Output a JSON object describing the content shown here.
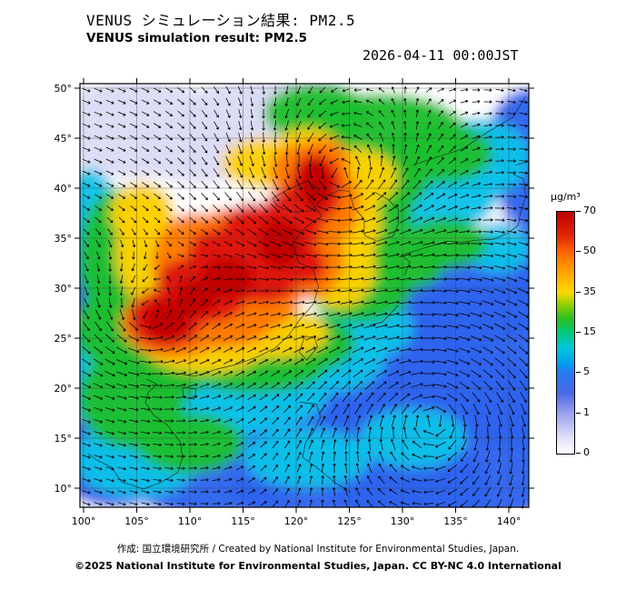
{
  "header": {
    "title_jp": "VENUS シミュレーション結果: PM2.5",
    "title_en": "VENUS simulation result: PM2.5",
    "datetime": "2026-04-11 00:00JST"
  },
  "footer": {
    "credit": "作成:  国立環境研究所 / Created by National Institute for Environmental Studies, Japan.",
    "copyright": "©2025 National Institute for Environmental Studies, Japan. CC BY-NC 4.0 International"
  },
  "chart_data": {
    "type": "heatmap",
    "title": "VENUS simulation result: PM2.5",
    "title_jp": "VENUS シミュレーション結果: PM2.5",
    "datetime": "2026-04-11 00:00JST",
    "variable": "PM2.5",
    "unit": "µg/m³",
    "lon_range": [
      100,
      142
    ],
    "lat_range": [
      8,
      50.5
    ],
    "grid_interval_deg": 5,
    "lon_ticks": [
      {
        "value": 100,
        "label": "100°"
      },
      {
        "value": 105,
        "label": "105°"
      },
      {
        "value": 110,
        "label": "110°"
      },
      {
        "value": 115,
        "label": "115°"
      },
      {
        "value": 120,
        "label": "120°"
      },
      {
        "value": 125,
        "label": "125°"
      },
      {
        "value": 130,
        "label": "130°"
      },
      {
        "value": 135,
        "label": "135°"
      },
      {
        "value": 140,
        "label": "140°"
      }
    ],
    "lat_ticks": [
      {
        "value": 50,
        "label": "50°"
      },
      {
        "value": 45,
        "label": "45°"
      },
      {
        "value": 40,
        "label": "40°"
      },
      {
        "value": 35,
        "label": "35°"
      },
      {
        "value": 30,
        "label": "30°"
      },
      {
        "value": 25,
        "label": "25°"
      },
      {
        "value": 20,
        "label": "20°"
      },
      {
        "value": 15,
        "label": "15°"
      },
      {
        "value": 10,
        "label": "10°"
      }
    ],
    "colorbar": {
      "unit_label": "µg/m³",
      "levels": [
        "70",
        "50",
        "35",
        "15",
        "5",
        "1",
        "0"
      ],
      "level_values": [
        70,
        50,
        35,
        15,
        5,
        1,
        0
      ],
      "gradient_stops": [
        {
          "pos": 0.0,
          "color": "#bf0000"
        },
        {
          "pos": 0.1,
          "color": "#e02800"
        },
        {
          "pos": 0.167,
          "color": "#ff6600"
        },
        {
          "pos": 0.26,
          "color": "#ffaa00"
        },
        {
          "pos": 0.333,
          "color": "#ffd800"
        },
        {
          "pos": 0.38,
          "color": "#98d000"
        },
        {
          "pos": 0.44,
          "color": "#2ec020"
        },
        {
          "pos": 0.5,
          "color": "#00c878"
        },
        {
          "pos": 0.56,
          "color": "#00c8d8"
        },
        {
          "pos": 0.625,
          "color": "#00a0f0"
        },
        {
          "pos": 0.667,
          "color": "#2878ee"
        },
        {
          "pos": 0.75,
          "color": "#4a6ae8"
        },
        {
          "pos": 0.833,
          "color": "#9aa0ee"
        },
        {
          "pos": 0.92,
          "color": "#d8d8f6"
        },
        {
          "pos": 1.0,
          "color": "#ffffff"
        }
      ]
    },
    "blob_format": [
      "lon",
      "lat",
      "rx_deg",
      "ry_deg",
      "color"
    ],
    "field_blobs": [
      [
        105,
        46,
        8,
        5,
        "#dcdcf6"
      ],
      [
        116,
        47,
        7,
        4,
        "#dcdcf6"
      ],
      [
        111,
        43.5,
        6,
        3,
        "#dcdcf6"
      ],
      [
        120,
        49,
        5,
        3,
        "#dcdcf6"
      ],
      [
        141,
        30.5,
        4,
        5,
        "#dcdcf6"
      ],
      [
        142,
        36,
        3,
        3,
        "#dcdcf6"
      ],
      [
        139.5,
        11,
        6,
        4,
        "#dcdcf6"
      ],
      [
        134,
        15,
        14,
        9,
        "#2e63ed"
      ],
      [
        126,
        10,
        12,
        6,
        "#2e63ed"
      ],
      [
        140,
        23,
        7,
        9,
        "#2e63ed"
      ],
      [
        137,
        29,
        6,
        5,
        "#2e63ed"
      ],
      [
        133,
        26,
        6,
        5,
        "#2e63ed"
      ],
      [
        130,
        20,
        9,
        7,
        "#2e63ed"
      ],
      [
        120,
        16,
        8,
        5,
        "#2e63ed"
      ],
      [
        112,
        12,
        9,
        5,
        "#2e63ed"
      ],
      [
        103,
        13,
        6,
        5,
        "#2e63ed"
      ],
      [
        142,
        45,
        4,
        5,
        "#2e63ed"
      ],
      [
        142,
        40,
        3,
        4,
        "#2e63ed"
      ],
      [
        100.5,
        30.5,
        2.5,
        4,
        "#2e63ed"
      ],
      [
        143,
        33,
        3,
        4,
        "#2e63ed"
      ],
      [
        133,
        39.5,
        6,
        4,
        "#10c2e8"
      ],
      [
        137,
        43,
        5,
        4,
        "#10c2e8"
      ],
      [
        102,
        22,
        5,
        6,
        "#10c2e8"
      ],
      [
        105,
        13,
        6,
        4,
        "#10c2e8"
      ],
      [
        115,
        19.5,
        8,
        4,
        "#10c2e8"
      ],
      [
        110,
        16.5,
        6,
        4,
        "#10c2e8"
      ],
      [
        123.5,
        23.5,
        5,
        4,
        "#10c2e8"
      ],
      [
        100.5,
        36,
        3,
        6,
        "#10c2e8"
      ],
      [
        127,
        26,
        4,
        3,
        "#10c2e8"
      ],
      [
        139,
        34,
        3,
        2.5,
        "#10c2e8"
      ],
      [
        121,
        13,
        6,
        3,
        "#10c2e8"
      ],
      [
        131,
        15,
        5,
        3,
        "#10c2e8"
      ],
      [
        128,
        45.5,
        8,
        4,
        "#1ebd2e"
      ],
      [
        122,
        47.5,
        5,
        3,
        "#1ebd2e"
      ],
      [
        133.5,
        43.5,
        5,
        3,
        "#1ebd2e"
      ],
      [
        129.5,
        41,
        3,
        3,
        "#1ebd2e"
      ],
      [
        127,
        37.5,
        4,
        4,
        "#1ebd2e"
      ],
      [
        103.5,
        33,
        4,
        7,
        "#1ebd2e"
      ],
      [
        103,
        26,
        4,
        4,
        "#1ebd2e"
      ],
      [
        116,
        22.5,
        7,
        3,
        "#1ebd2e"
      ],
      [
        120.5,
        24.5,
        5,
        3,
        "#1ebd2e"
      ],
      [
        104.5,
        19,
        5,
        5,
        "#1ebd2e"
      ],
      [
        107.5,
        21.5,
        4,
        3,
        "#1ebd2e"
      ],
      [
        134,
        34.5,
        4,
        2.5,
        "#1ebd2e"
      ],
      [
        131,
        32.5,
        3,
        2.5,
        "#1ebd2e"
      ],
      [
        126,
        30.5,
        5,
        4,
        "#1ebd2e"
      ],
      [
        125.5,
        33.5,
        4,
        3,
        "#1ebd2e"
      ],
      [
        110,
        14.5,
        5,
        3,
        "#1ebd2e"
      ],
      [
        111.5,
        24.5,
        6,
        3,
        "#ffd000"
      ],
      [
        106,
        33.5,
        3,
        5,
        "#ffd000"
      ],
      [
        118,
        25.5,
        5,
        2.5,
        "#ffd000"
      ],
      [
        124,
        32,
        3.5,
        4,
        "#ffd000"
      ],
      [
        125,
        36.5,
        3,
        4,
        "#ffd000"
      ],
      [
        125.5,
        41,
        4,
        3,
        "#ffd000"
      ],
      [
        117,
        42.5,
        4,
        2.5,
        "#ffd000"
      ],
      [
        105.5,
        37.5,
        3,
        3,
        "#ffd000"
      ],
      [
        121,
        44,
        3,
        2,
        "#ffd000"
      ],
      [
        108.5,
        26.5,
        5,
        3.5,
        "#ff7a00"
      ],
      [
        113,
        27,
        5,
        3,
        "#ff7a00"
      ],
      [
        110.5,
        32.5,
        4,
        5,
        "#ff7a00"
      ],
      [
        115.5,
        29.5,
        5,
        4,
        "#ff7a00"
      ],
      [
        118.5,
        31.5,
        4,
        3,
        "#ff7a00"
      ],
      [
        114,
        35,
        4,
        3,
        "#ff7a00"
      ],
      [
        121.5,
        33,
        3,
        4,
        "#ff7a00"
      ],
      [
        123,
        38.5,
        3,
        4,
        "#ff7a00"
      ],
      [
        120.5,
        41.5,
        3,
        3,
        "#ff7a00"
      ],
      [
        122.5,
        42.5,
        2.5,
        2.5,
        "#ff7a00"
      ],
      [
        107.8,
        27,
        3.5,
        3,
        "#df1410"
      ],
      [
        111.5,
        29.5,
        4,
        3,
        "#df1410"
      ],
      [
        114.5,
        31.5,
        4,
        3,
        "#df1410"
      ],
      [
        117.5,
        33.5,
        3.5,
        3,
        "#df1410"
      ],
      [
        119.5,
        36.5,
        3,
        3.5,
        "#df1410"
      ],
      [
        121.8,
        40,
        2.5,
        3.5,
        "#df1410"
      ],
      [
        112.8,
        33.5,
        3,
        2.5,
        "#df1410"
      ],
      [
        109.8,
        30.5,
        3,
        2.5,
        "#df1410"
      ],
      [
        117,
        30.5,
        3,
        2,
        "#df1410"
      ],
      [
        120.8,
        32.3,
        2,
        2,
        "#df1410"
      ],
      [
        116,
        36,
        3,
        2.5,
        "#df1410"
      ],
      [
        107.8,
        26.8,
        2,
        2,
        "#c00000"
      ],
      [
        113.5,
        31,
        2.5,
        2,
        "#c00000"
      ],
      [
        118.5,
        34.5,
        2,
        2.5,
        "#c00000"
      ],
      [
        121.8,
        40.5,
        1.5,
        2.5,
        "#c00000"
      ],
      [
        110.5,
        29,
        2,
        1.8,
        "#c00000"
      ]
    ],
    "coastlines": [
      [
        [
          108.5,
          21.5
        ],
        [
          110.5,
          21.2
        ],
        [
          112.5,
          21.9
        ],
        [
          114.5,
          22.4
        ],
        [
          116.5,
          23.2
        ],
        [
          118,
          24
        ],
        [
          119.3,
          25.3
        ],
        [
          120.3,
          26.8
        ],
        [
          121.6,
          28.4
        ],
        [
          122.1,
          30.1
        ],
        [
          121.6,
          31.9
        ],
        [
          120.2,
          32.6
        ],
        [
          119.7,
          34.6
        ],
        [
          120.9,
          36.1
        ],
        [
          122.4,
          37.2
        ],
        [
          121.2,
          38.9
        ],
        [
          122.2,
          39.9
        ],
        [
          121,
          40.7
        ],
        [
          119.3,
          39.9
        ],
        [
          117.8,
          39
        ],
        [
          118.2,
          38.2
        ],
        [
          119.8,
          37.6
        ],
        [
          121.3,
          37.7
        ],
        [
          122.6,
          39.1
        ],
        [
          124,
          39.8
        ],
        [
          125,
          39.7
        ]
      ],
      [
        [
          125,
          39.7
        ],
        [
          125.4,
          38.1
        ],
        [
          126.4,
          36.9
        ],
        [
          126.4,
          35.3
        ],
        [
          127.6,
          34.7
        ],
        [
          129.1,
          35.2
        ],
        [
          129.6,
          36.4
        ],
        [
          129.6,
          37.9
        ],
        [
          128.6,
          38.9
        ],
        [
          127.4,
          39.6
        ]
      ],
      [
        [
          130.2,
          31.3
        ],
        [
          130.7,
          32.6
        ],
        [
          129.9,
          33.3
        ],
        [
          131.1,
          33.7
        ],
        [
          132.6,
          34.2
        ],
        [
          134.2,
          34.7
        ],
        [
          135.6,
          34.6
        ],
        [
          137,
          34.8
        ],
        [
          138.6,
          34.9
        ],
        [
          139.9,
          35.5
        ],
        [
          140.9,
          36.3
        ],
        [
          141.1,
          37.6
        ],
        [
          141.6,
          39.1
        ],
        [
          141.4,
          40.9
        ],
        [
          140.4,
          41.4
        ]
      ],
      [
        [
          140.6,
          42.3
        ],
        [
          142,
          42.7
        ],
        [
          143,
          43.2
        ]
      ],
      [
        [
          131,
          42.3
        ],
        [
          133.2,
          43.1
        ],
        [
          135.6,
          43.9
        ],
        [
          138,
          45.6
        ],
        [
          140.4,
          47.1
        ],
        [
          141.6,
          49.2
        ]
      ],
      [
        [
          120.8,
          25.2
        ],
        [
          121.7,
          25.1
        ],
        [
          122,
          24.1
        ],
        [
          121,
          22.8
        ],
        [
          120.3,
          23.6
        ],
        [
          120.8,
          25.2
        ]
      ],
      [
        [
          109.3,
          20.1
        ],
        [
          110.6,
          19.9
        ],
        [
          110.4,
          18.9
        ],
        [
          109.4,
          19.1
        ],
        [
          109.3,
          20.1
        ]
      ],
      [
        [
          105.9,
          20.9
        ],
        [
          106.9,
          20.4
        ],
        [
          106.1,
          19.6
        ],
        [
          105.8,
          18.6
        ],
        [
          106.6,
          17.3
        ],
        [
          107.9,
          16.3
        ],
        [
          109.1,
          14.6
        ],
        [
          109.3,
          13.1
        ],
        [
          108.9,
          11.6
        ],
        [
          107.3,
          10.6
        ],
        [
          105.6,
          9.9
        ],
        [
          104.6,
          10.3
        ],
        [
          103.6,
          10.6
        ],
        [
          102.6,
          12.1
        ],
        [
          101.1,
          12.9
        ],
        [
          100.4,
          13.5
        ]
      ],
      [
        [
          120.3,
          18.6
        ],
        [
          121.9,
          18.4
        ],
        [
          122.3,
          17.1
        ],
        [
          121.6,
          15.6
        ],
        [
          120.9,
          14.6
        ],
        [
          120.6,
          13.1
        ],
        [
          121.9,
          12.1
        ],
        [
          123.6,
          10.6
        ],
        [
          125.1,
          9.6
        ]
      ],
      [
        [
          126.9,
          26.3
        ],
        [
          128.1,
          26.6
        ],
        [
          129.6,
          28.3
        ]
      ]
    ],
    "wind_field": {
      "arrow_spacing_px": 13,
      "background": [
        0.55,
        -0.2
      ],
      "vortices": [
        {
          "lon": 124,
          "lat": 41,
          "strength": 1.7,
          "radius": 8,
          "rotation": "ccw"
        },
        {
          "lon": 133,
          "lat": 17,
          "strength": 1.9,
          "radius": 11,
          "rotation": "cw"
        },
        {
          "lon": 106,
          "lat": 27,
          "strength": 1.1,
          "radius": 6,
          "rotation": "ccw"
        }
      ]
    },
    "legend_position": "right"
  }
}
